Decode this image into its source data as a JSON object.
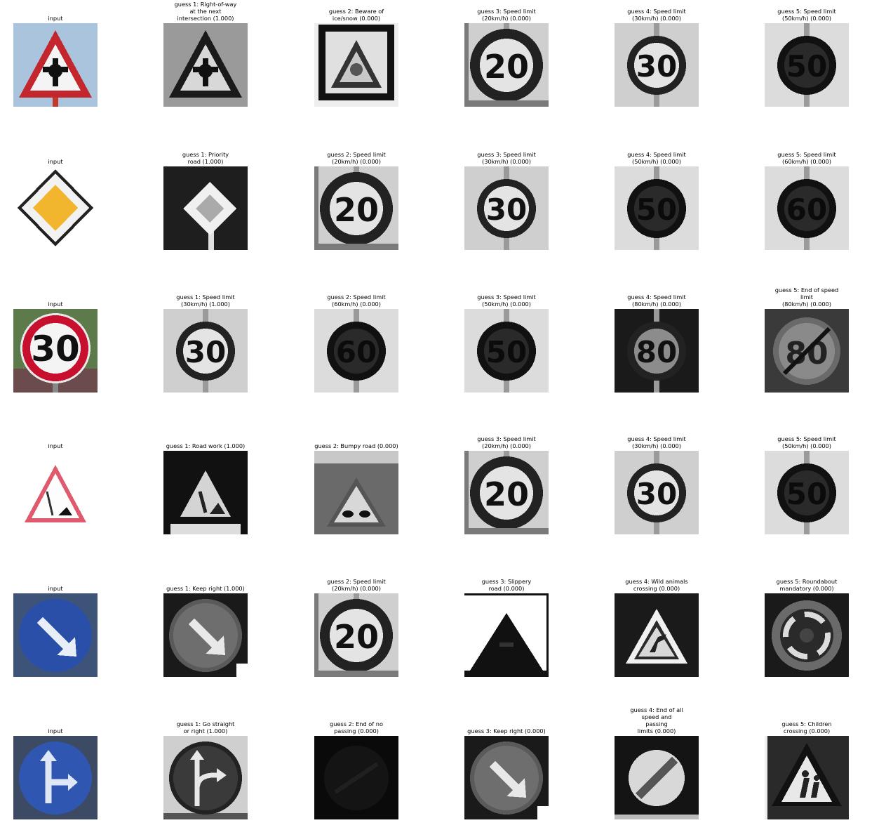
{
  "rows": [
    {
      "input_label": "input",
      "input_sign": "right-of-way-color",
      "guesses": [
        {
          "label": "guess 1: Right-of-way\nat the next\nintersection (1.000)",
          "sign": "right-of-way-gray"
        },
        {
          "label": "guess 2: Beware of\nice/snow (0.000)",
          "sign": "ice-snow-gray"
        },
        {
          "label": "guess 3: Speed limit\n(20km/h) (0.000)",
          "sign": "speed-20-gray"
        },
        {
          "label": "guess 4: Speed limit\n(30km/h) (0.000)",
          "sign": "speed-30-gray"
        },
        {
          "label": "guess 5: Speed limit\n(50km/h) (0.000)",
          "sign": "speed-50-gray"
        }
      ]
    },
    {
      "input_label": "input",
      "input_sign": "priority-road-color",
      "guesses": [
        {
          "label": "guess 1: Priority\nroad (1.000)",
          "sign": "priority-road-gray"
        },
        {
          "label": "guess 2: Speed limit\n(20km/h) (0.000)",
          "sign": "speed-20-gray"
        },
        {
          "label": "guess 3: Speed limit\n(30km/h) (0.000)",
          "sign": "speed-30-gray"
        },
        {
          "label": "guess 4: Speed limit\n(50km/h) (0.000)",
          "sign": "speed-50-gray"
        },
        {
          "label": "guess 5: Speed limit\n(60km/h) (0.000)",
          "sign": "speed-60-gray"
        }
      ]
    },
    {
      "input_label": "input",
      "input_sign": "speed-30-color",
      "guesses": [
        {
          "label": "guess 1: Speed limit\n(30km/h) (1.000)",
          "sign": "speed-30-gray"
        },
        {
          "label": "guess 2: Speed limit\n(60km/h) (0.000)",
          "sign": "speed-60-gray"
        },
        {
          "label": "guess 3: Speed limit\n(50km/h) (0.000)",
          "sign": "speed-50-gray"
        },
        {
          "label": "guess 4: Speed limit\n(80km/h) (0.000)",
          "sign": "speed-80-gray"
        },
        {
          "label": "guess 5: End of speed\nlimit\n(80km/h) (0.000)",
          "sign": "end-speed-80-gray"
        }
      ]
    },
    {
      "input_label": "input",
      "input_sign": "road-work-color",
      "guesses": [
        {
          "label": "guess 1: Road work (1.000)",
          "sign": "road-work-gray"
        },
        {
          "label": "guess 2: Bumpy road (0.000)",
          "sign": "bumpy-road-gray"
        },
        {
          "label": "guess 3: Speed limit\n(20km/h) (0.000)",
          "sign": "speed-20-gray"
        },
        {
          "label": "guess 4: Speed limit\n(30km/h) (0.000)",
          "sign": "speed-30-gray"
        },
        {
          "label": "guess 5: Speed limit\n(50km/h) (0.000)",
          "sign": "speed-50-gray"
        }
      ]
    },
    {
      "input_label": "input",
      "input_sign": "keep-right-color",
      "guesses": [
        {
          "label": "guess 1: Keep right (1.000)",
          "sign": "keep-right-gray"
        },
        {
          "label": "guess 2: Speed limit\n(20km/h) (0.000)",
          "sign": "speed-20-gray"
        },
        {
          "label": "guess 3: Slippery\nroad (0.000)",
          "sign": "slippery-road-gray"
        },
        {
          "label": "guess 4: Wild animals\ncrossing (0.000)",
          "sign": "wild-animals-gray"
        },
        {
          "label": "guess 5: Roundabout\nmandatory (0.000)",
          "sign": "roundabout-gray"
        }
      ]
    },
    {
      "input_label": "input",
      "input_sign": "straight-or-right-color",
      "guesses": [
        {
          "label": "guess 1: Go straight\nor right (1.000)",
          "sign": "straight-or-right-gray"
        },
        {
          "label": "guess 2: End of no\npassing (0.000)",
          "sign": "end-no-passing-gray"
        },
        {
          "label": "guess 3: Keep right (0.000)",
          "sign": "keep-right-gray"
        },
        {
          "label": "guess 4: End of all\nspeed and\npassing\nlimits (0.000)",
          "sign": "end-all-limits-gray"
        },
        {
          "label": "guess 5: Children\ncrossing (0.000)",
          "sign": "children-crossing-gray"
        }
      ]
    }
  ]
}
